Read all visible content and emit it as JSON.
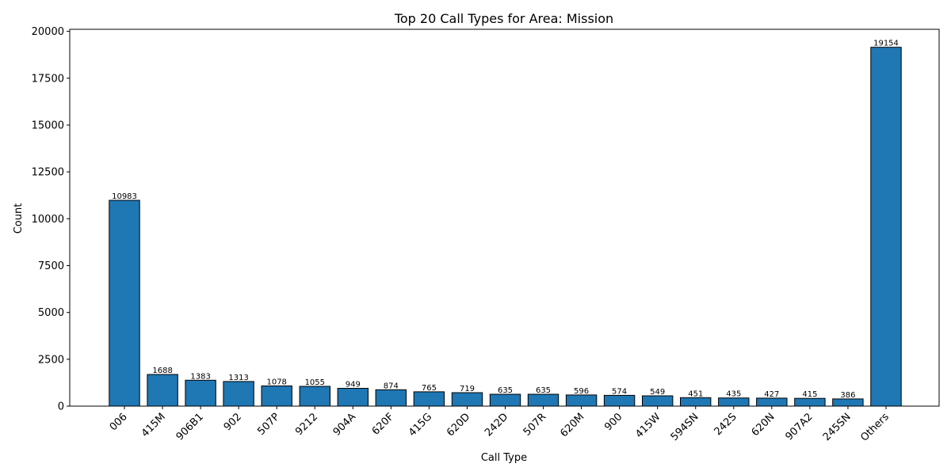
{
  "chart_data": {
    "type": "bar",
    "title": "Top 20 Call Types for Area: Mission",
    "xlabel": "Call Type",
    "ylabel": "Count",
    "categories": [
      "006",
      "415M",
      "906B1",
      "902",
      "507P",
      "9212",
      "904A",
      "620F",
      "415G",
      "620D",
      "242D",
      "507R",
      "620M",
      "900",
      "415W",
      "594SN",
      "242S",
      "620N",
      "907A2",
      "245SN",
      "Others"
    ],
    "values": [
      10983,
      1688,
      1383,
      1313,
      1078,
      1055,
      949,
      874,
      765,
      719,
      635,
      635,
      596,
      574,
      549,
      451,
      435,
      427,
      415,
      386,
      19154
    ],
    "data_labels": [
      "10983",
      "1688",
      "1383",
      "1313",
      "1078",
      "1055",
      "949",
      "874",
      "765",
      "719",
      "635",
      "635",
      "596",
      "574",
      "549",
      "451",
      "435",
      "427",
      "415",
      "386",
      "19154"
    ],
    "yticks": [
      0,
      2500,
      5000,
      7500,
      10000,
      12500,
      15000,
      17500,
      20000
    ],
    "ytick_labels": [
      "0",
      "2500",
      "5000",
      "7500",
      "10000",
      "12500",
      "15000",
      "17500",
      "20000"
    ],
    "ylim": [
      0,
      20111
    ],
    "grid": false,
    "legend": "none",
    "bar_color": "#1f77b4",
    "edge_color": "#000000"
  }
}
